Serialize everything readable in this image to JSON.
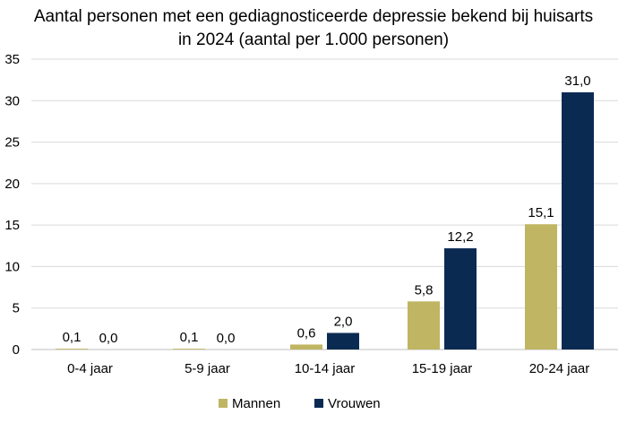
{
  "chart_data": {
    "type": "bar",
    "title_line1": "Aantal personen met een gediagnosticeerde depressie bekend bij huisarts",
    "title_line2": "in 2024 (aantal per 1.000 personen)",
    "categories": [
      "0-4 jaar",
      "5-9 jaar",
      "10-14 jaar",
      "15-19 jaar",
      "20-24 jaar"
    ],
    "series": [
      {
        "name": "Mannen",
        "color": "#bfb563",
        "values": [
          0.1,
          0.1,
          0.6,
          5.8,
          15.1
        ],
        "labels": [
          "0,1",
          "0,1",
          "0,6",
          "5,8",
          "15,1"
        ]
      },
      {
        "name": "Vrouwen",
        "color": "#0b2a52",
        "values": [
          0.0,
          0.0,
          2.0,
          12.2,
          31.0
        ],
        "labels": [
          "0,0",
          "0,0",
          "2,0",
          "12,2",
          "31,0"
        ]
      }
    ],
    "ylim": [
      0,
      35
    ],
    "yticks": [
      0,
      5,
      10,
      15,
      20,
      25,
      30,
      35
    ],
    "grid": true,
    "legend_position": "bottom"
  }
}
